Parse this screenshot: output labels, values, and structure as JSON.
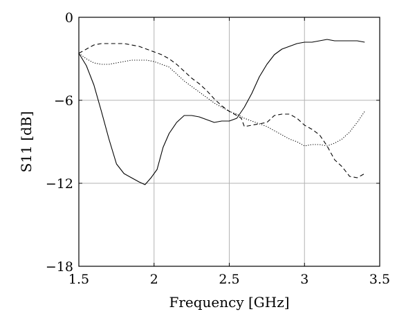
{
  "chart_data": {
    "type": "line",
    "title": "",
    "xlabel": "Frequency [GHz]",
    "ylabel": "S11 [dB]",
    "xlim": [
      1.5,
      3.5
    ],
    "ylim": [
      -18,
      0
    ],
    "xticks": [
      1.5,
      2,
      2.5,
      3,
      3.5
    ],
    "xtick_labels": [
      "1.5",
      "2",
      "2.5",
      "3",
      "3.5"
    ],
    "yticks": [
      -18,
      -12,
      -6,
      0
    ],
    "ytick_labels": [
      "−18",
      "−12",
      "−6",
      "0"
    ],
    "grid": true,
    "legend": "none",
    "series": [
      {
        "style": "solid",
        "x": [
          1.5,
          1.55,
          1.6,
          1.65,
          1.7,
          1.75,
          1.8,
          1.85,
          1.9,
          1.94,
          1.98,
          2.02,
          2.06,
          2.1,
          2.15,
          2.2,
          2.25,
          2.3,
          2.35,
          2.4,
          2.45,
          2.5,
          2.55,
          2.6,
          2.65,
          2.7,
          2.75,
          2.8,
          2.85,
          2.9,
          2.95,
          3.0,
          3.05,
          3.1,
          3.15,
          3.2,
          3.25,
          3.3,
          3.35,
          3.4
        ],
        "y": [
          -2.6,
          -3.5,
          -4.9,
          -6.8,
          -8.8,
          -10.6,
          -11.3,
          -11.6,
          -11.9,
          -12.1,
          -11.6,
          -11.0,
          -9.4,
          -8.4,
          -7.6,
          -7.1,
          -7.1,
          -7.2,
          -7.4,
          -7.6,
          -7.5,
          -7.5,
          -7.3,
          -6.5,
          -5.5,
          -4.3,
          -3.4,
          -2.7,
          -2.3,
          -2.1,
          -1.9,
          -1.8,
          -1.8,
          -1.7,
          -1.6,
          -1.7,
          -1.7,
          -1.7,
          -1.7,
          -1.8
        ]
      },
      {
        "style": "dashed",
        "x": [
          1.5,
          1.55,
          1.6,
          1.65,
          1.7,
          1.75,
          1.8,
          1.85,
          1.9,
          1.95,
          2.0,
          2.05,
          2.1,
          2.15,
          2.2,
          2.25,
          2.3,
          2.35,
          2.4,
          2.45,
          2.5,
          2.55,
          2.58,
          2.6,
          2.65,
          2.7,
          2.75,
          2.8,
          2.85,
          2.9,
          2.95,
          3.0,
          3.05,
          3.1,
          3.15,
          3.2,
          3.25,
          3.3,
          3.35,
          3.4
        ],
        "y": [
          -2.6,
          -2.3,
          -2.0,
          -1.9,
          -1.9,
          -1.9,
          -1.9,
          -2.0,
          -2.1,
          -2.3,
          -2.5,
          -2.7,
          -3.0,
          -3.4,
          -3.9,
          -4.4,
          -4.8,
          -5.3,
          -5.9,
          -6.4,
          -6.8,
          -7.1,
          -7.3,
          -7.9,
          -7.8,
          -7.7,
          -7.6,
          -7.1,
          -7.0,
          -7.0,
          -7.3,
          -7.8,
          -8.1,
          -8.5,
          -9.3,
          -10.3,
          -10.8,
          -11.5,
          -11.6,
          -11.3
        ]
      },
      {
        "style": "dotted",
        "x": [
          1.5,
          1.55,
          1.6,
          1.65,
          1.7,
          1.75,
          1.8,
          1.85,
          1.9,
          1.95,
          2.0,
          2.05,
          2.1,
          2.15,
          2.2,
          2.25,
          2.3,
          2.35,
          2.4,
          2.45,
          2.5,
          2.55,
          2.6,
          2.65,
          2.7,
          2.75,
          2.8,
          2.85,
          2.9,
          2.95,
          3.0,
          3.05,
          3.1,
          3.15,
          3.2,
          3.25,
          3.3,
          3.35,
          3.4
        ],
        "y": [
          -2.6,
          -3.0,
          -3.3,
          -3.4,
          -3.4,
          -3.3,
          -3.2,
          -3.1,
          -3.1,
          -3.1,
          -3.2,
          -3.4,
          -3.6,
          -4.1,
          -4.6,
          -5.0,
          -5.4,
          -5.8,
          -6.2,
          -6.5,
          -6.8,
          -7.0,
          -7.3,
          -7.5,
          -7.7,
          -7.9,
          -8.2,
          -8.5,
          -8.8,
          -9.0,
          -9.3,
          -9.2,
          -9.2,
          -9.3,
          -9.1,
          -8.8,
          -8.3,
          -7.6,
          -6.8
        ]
      }
    ]
  }
}
